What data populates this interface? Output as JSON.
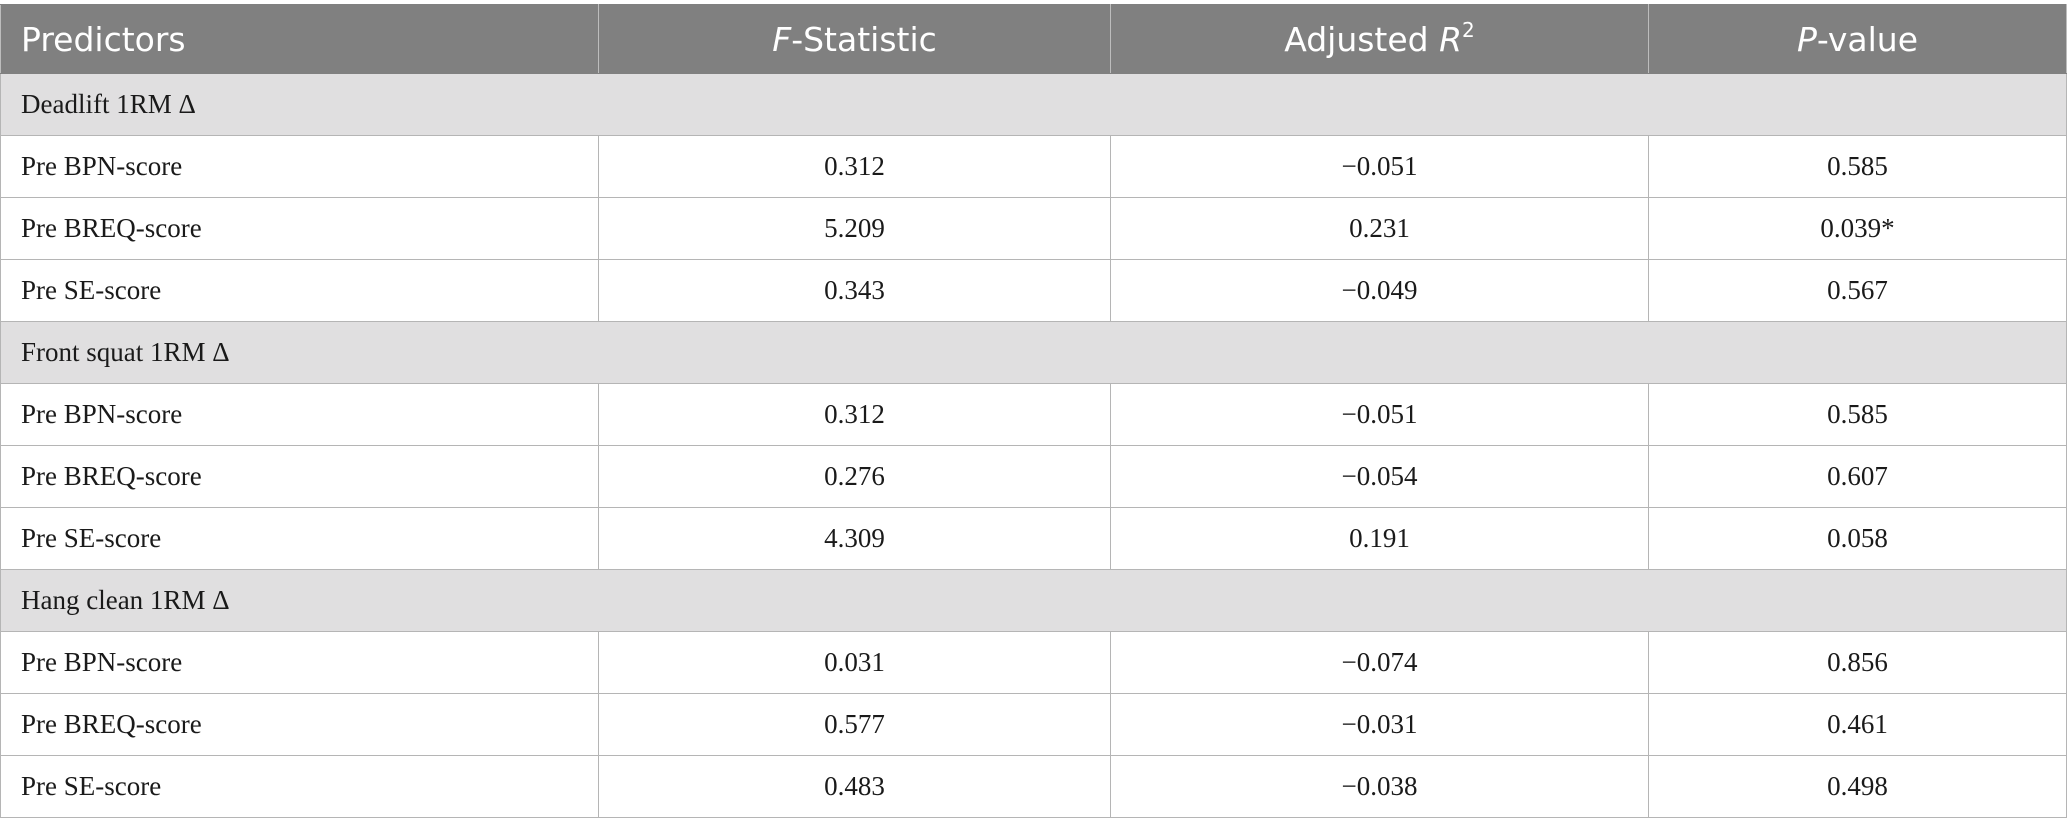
{
  "header": {
    "predictors": "Predictors",
    "f_stat_italic": "F",
    "f_stat_rest": "-Statistic",
    "adj_r2_text": "Adjusted ",
    "adj_r2_italic": "R",
    "adj_r2_sup": "2",
    "p_value_italic": "P",
    "p_value_rest": "-value"
  },
  "groups": [
    {
      "title": "Deadlift 1RM Δ",
      "rows": [
        {
          "predictor": "Pre BPN-score",
          "f": "0.312",
          "r2": "−0.051",
          "p": "0.585"
        },
        {
          "predictor": "Pre BREQ-score",
          "f": "5.209",
          "r2": "0.231",
          "p": "0.039*"
        },
        {
          "predictor": "Pre SE-score",
          "f": "0.343",
          "r2": "−0.049",
          "p": "0.567"
        }
      ]
    },
    {
      "title": "Front squat 1RM Δ",
      "rows": [
        {
          "predictor": "Pre BPN-score",
          "f": "0.312",
          "r2": "−0.051",
          "p": "0.585"
        },
        {
          "predictor": "Pre BREQ-score",
          "f": "0.276",
          "r2": "−0.054",
          "p": "0.607"
        },
        {
          "predictor": "Pre SE-score",
          "f": "4.309",
          "r2": "0.191",
          "p": "0.058"
        }
      ]
    },
    {
      "title": "Hang clean 1RM Δ",
      "rows": [
        {
          "predictor": "Pre BPN-score",
          "f": "0.031",
          "r2": "−0.074",
          "p": "0.856"
        },
        {
          "predictor": "Pre BREQ-score",
          "f": "0.577",
          "r2": "−0.031",
          "p": "0.461"
        },
        {
          "predictor": "Pre SE-score",
          "f": "0.483",
          "r2": "−0.038",
          "p": "0.498"
        }
      ]
    }
  ]
}
